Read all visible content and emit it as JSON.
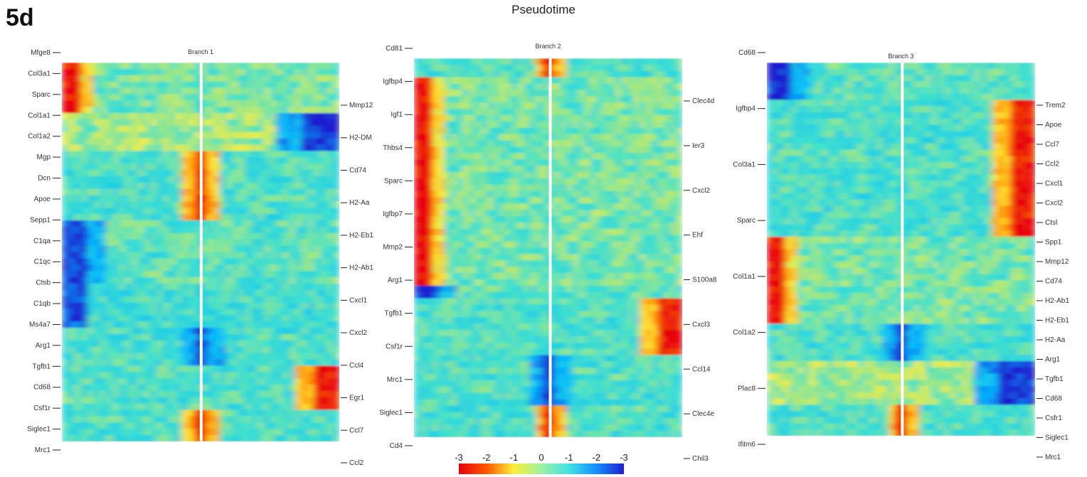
{
  "figure": {
    "panel_label": "5d",
    "title": "Pseudotime"
  },
  "chart_data": [
    {
      "type": "heatmap",
      "title": "Branch 1",
      "color_scale": {
        "stops": [
          "#e8000a",
          "#ff8a00",
          "#ffee3a",
          "#3fe0d0",
          "#00b7ff",
          "#1e1fcf"
        ]
      },
      "gene_labels": {
        "left": [
          "Mfge8",
          "Col3a1",
          "Sparc",
          "Col1a1",
          "Col1a2",
          "Mgp",
          "Dcn",
          "Apoe",
          "Sepp1",
          "C1qa",
          "C1qc",
          "Ctsb",
          "C1qb",
          "Ms4a7",
          "Arg1",
          "Tgfb1",
          "Cd68",
          "Csf1r",
          "Siglec1",
          "Mrc1"
        ],
        "right": [
          "Mmp12",
          "H2-DM",
          "Cd74",
          "H2-Aa",
          "H2-Eb1",
          "H2-Ab1",
          "Cxcl1",
          "Cxcl2",
          "Ccl4",
          "Egr1",
          "Ccl7",
          "Ccl2"
        ]
      }
    },
    {
      "type": "heatmap",
      "title": "Branch 2",
      "gene_labels": {
        "left": [
          "Cd81",
          "Igfbp4",
          "Igf1",
          "Thbs4",
          "Sparc",
          "Igfbp7",
          "Mmp2",
          "Arg1",
          "Tgfb1",
          "Csf1r",
          "Mrc1",
          "Siglec1",
          "Cd4"
        ],
        "right": [
          "Clec4d",
          "Ier3",
          "Cxcl2",
          "Ehf",
          "S100a8",
          "Cxcl3",
          "Ccl14",
          "Clec4e",
          "Chil3"
        ]
      },
      "colorbar": {
        "tick_labels": [
          "-3",
          "-2",
          "-1",
          "0",
          "-1",
          "-2",
          "-3"
        ]
      }
    },
    {
      "type": "heatmap",
      "title": "Branch 3",
      "gene_labels": {
        "left": [
          "Cd68",
          "Igfbp4",
          "Col3a1",
          "Sparc",
          "Col1a1",
          "Col1a2",
          "Plac8",
          "Ifitm6"
        ],
        "right": [
          "Trem2",
          "Apoe",
          "Ccl7",
          "Ccl2",
          "Cxcl1",
          "Cxcl2",
          "Ctsl",
          "Spp1",
          "Mmp12",
          "Cd74",
          "H2-Ab1",
          "H2-Eb1",
          "H2-Aa",
          "Arg1",
          "Tgfb1",
          "Cd68",
          "Csfr1",
          "Siglec1",
          "Mrc1"
        ]
      }
    }
  ]
}
